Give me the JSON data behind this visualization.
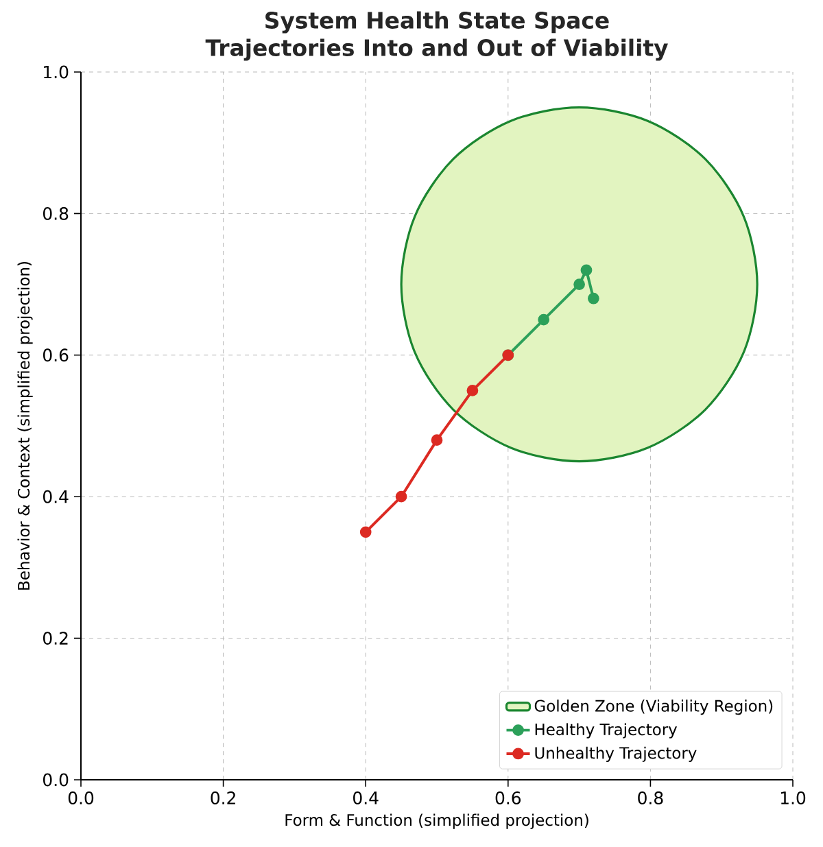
{
  "chart_data": {
    "type": "line",
    "title": "System Health State Space",
    "subtitle": "Trajectories Into and Out of Viability",
    "xlabel": "Form & Function (simplified projection)",
    "ylabel": "Behavior & Context (simplified projection)",
    "xlim": [
      0,
      1
    ],
    "ylim": [
      0,
      1
    ],
    "xticks": [
      {
        "value": 0,
        "label": "0.0"
      },
      {
        "value": 0.2,
        "label": "0.2"
      },
      {
        "value": 0.4,
        "label": "0.4"
      },
      {
        "value": 0.6,
        "label": "0.6"
      },
      {
        "value": 0.8,
        "label": "0.8"
      },
      {
        "value": 1,
        "label": "1.0"
      }
    ],
    "yticks": [
      {
        "value": 0,
        "label": "0.0"
      },
      {
        "value": 0.2,
        "label": "0.2"
      },
      {
        "value": 0.4,
        "label": "0.4"
      },
      {
        "value": 0.6,
        "label": "0.6"
      },
      {
        "value": 0.8,
        "label": "0.8"
      },
      {
        "value": 1,
        "label": "1.0"
      }
    ],
    "grid": true,
    "legend": "bottom right",
    "series": [
      {
        "name": "Golden Zone (Viability Region)",
        "type": "area",
        "color": "#e2f4c0",
        "x": [
          0.95,
          0.931,
          0.877,
          0.796,
          0.7,
          0.604,
          0.523,
          0.469,
          0.45,
          0.469,
          0.523,
          0.604,
          0.7,
          0.796,
          0.877,
          0.931
        ],
        "values": [
          0.7,
          0.796,
          0.877,
          0.931,
          0.95,
          0.931,
          0.877,
          0.796,
          0.7,
          0.604,
          0.523,
          0.469,
          0.45,
          0.469,
          0.523,
          0.604
        ]
      },
      {
        "name": "Healthy Trajectory",
        "color": "#2ca05a",
        "marker": "circle",
        "x": [
          0.6,
          0.65,
          0.7,
          0.71,
          0.72
        ],
        "values": [
          0.6,
          0.65,
          0.7,
          0.72,
          0.68
        ]
      },
      {
        "name": "Unhealthy Trajectory",
        "color": "#dc2a22",
        "marker": "circle",
        "x": [
          0.4,
          0.45,
          0.5,
          0.55,
          0.6
        ],
        "values": [
          0.35,
          0.4,
          0.48,
          0.55,
          0.6
        ]
      }
    ]
  }
}
